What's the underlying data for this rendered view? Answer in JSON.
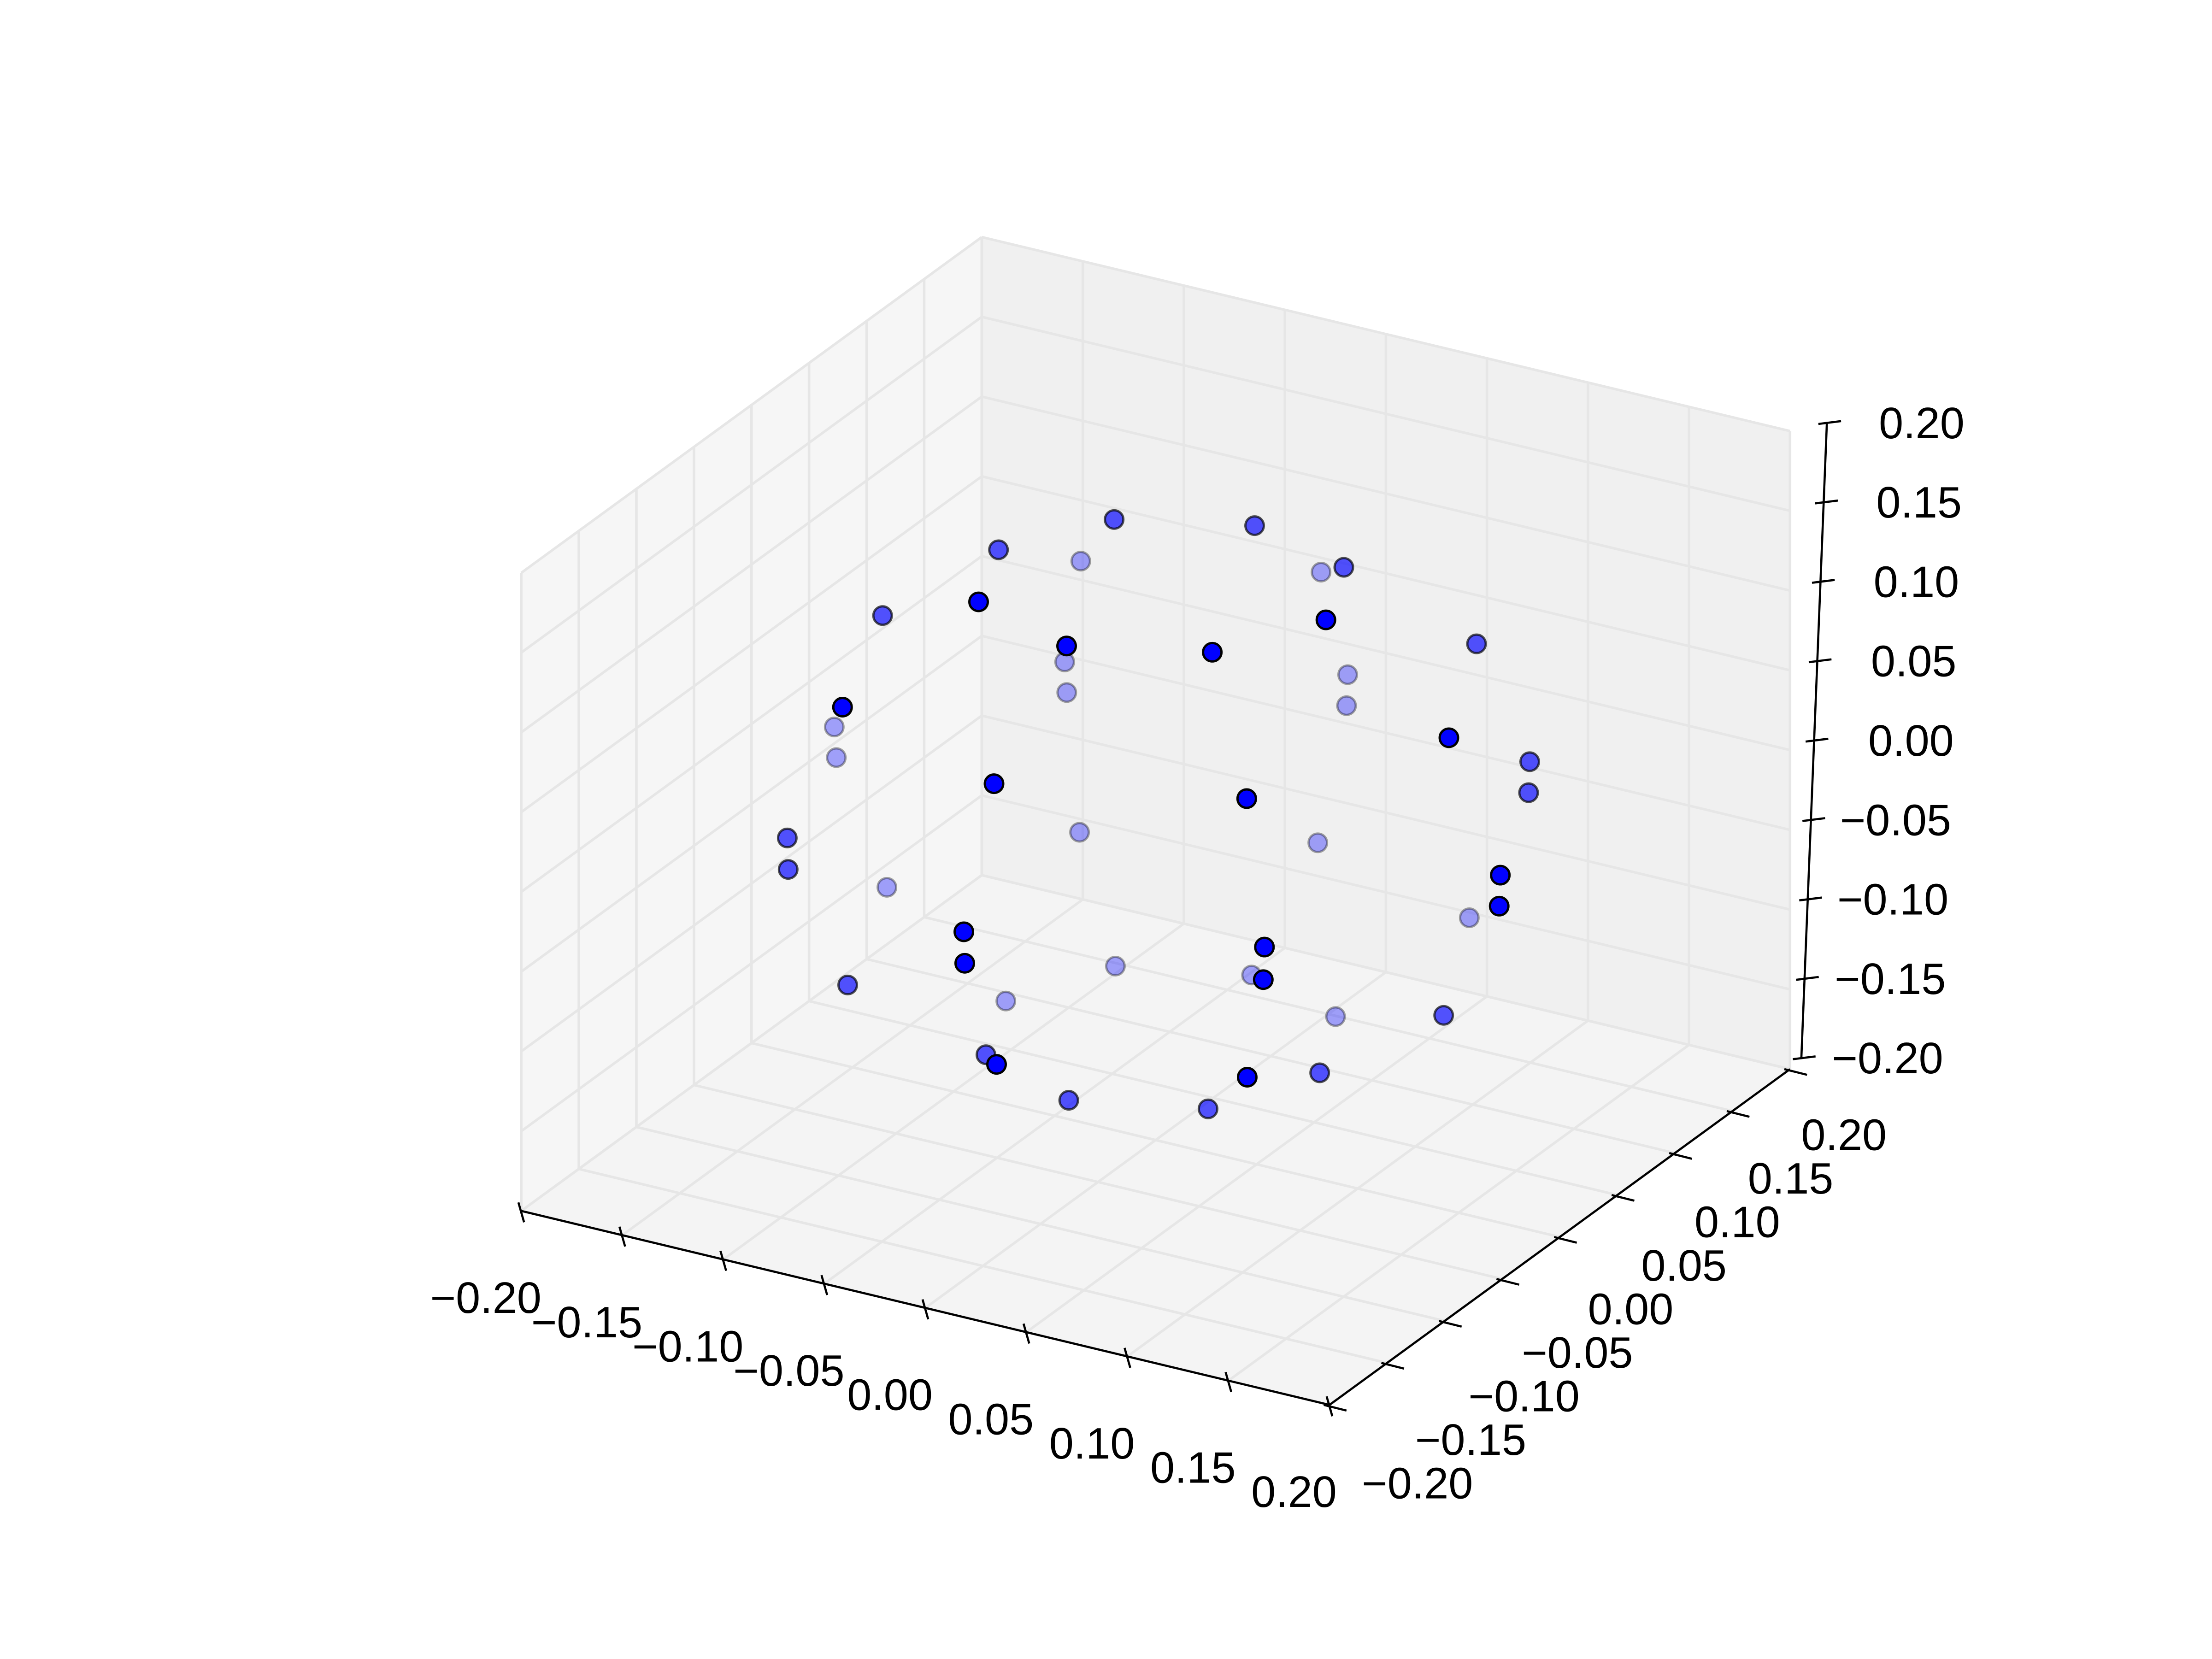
{
  "chart_data": {
    "type": "scatter3d",
    "title": "",
    "xlabel": "",
    "ylabel": "",
    "zlabel": "",
    "xlim": [
      -0.2,
      0.2
    ],
    "ylim": [
      -0.2,
      0.2
    ],
    "zlim": [
      -0.2,
      0.2
    ],
    "grid": true,
    "view": {
      "elev": 30,
      "azim": -60
    },
    "x_ticks": [
      "−0.20",
      "−0.15",
      "−0.10",
      "−0.05",
      "0.00",
      "0.05",
      "0.10",
      "0.15",
      "0.20"
    ],
    "y_ticks": [
      "−0.20",
      "−0.15",
      "−0.10",
      "−0.05",
      "0.00",
      "0.05",
      "0.10",
      "0.15",
      "0.20"
    ],
    "z_ticks": [
      "−0.20",
      "−0.15",
      "−0.10",
      "−0.05",
      "0.00",
      "0.05",
      "0.10",
      "0.15",
      "0.20"
    ],
    "marker_color": "#0000ff",
    "edge_color": "#000000",
    "pane_colors": {
      "left": "#f6f6f6",
      "back": "#f0f0f0",
      "floor": "#f4f4f4"
    },
    "grid_color": "#e6e6e6",
    "points": [
      [
        -0.057,
        0.064,
        0.138
      ],
      [
        -0.004,
        0.093,
        0.135
      ],
      [
        -0.096,
        0.032,
        0.124
      ],
      [
        -0.106,
        0.121,
        0.067
      ],
      [
        -0.015,
        0.17,
        0.062
      ],
      [
        0.035,
        0.102,
        0.116
      ],
      [
        -0.13,
        -0.009,
        0.094
      ],
      [
        -0.054,
        -0.059,
        0.152
      ],
      [
        0.078,
        0.011,
        0.144
      ],
      [
        -0.015,
        -0.051,
        0.132
      ],
      [
        -0.098,
        0.093,
        0.021
      ],
      [
        -0.093,
        0.086,
        0.007
      ],
      [
        0.04,
        -0.021,
        0.129
      ],
      [
        0.095,
        0.112,
        0.081
      ],
      [
        0.009,
        0.151,
        0.015
      ],
      [
        0.013,
        0.143,
        0.001
      ],
      [
        -0.09,
        -0.114,
        0.104
      ],
      [
        -0.175,
        0.028,
        -0.009
      ],
      [
        -0.17,
        0.021,
        -0.023
      ],
      [
        0.14,
        0.009,
        0.09
      ],
      [
        0.131,
        0.095,
        0.027
      ],
      [
        0.135,
        0.087,
        0.013
      ],
      [
        -0.023,
        -0.1,
        0.069
      ],
      [
        0.073,
        -0.049,
        0.062
      ],
      [
        -0.069,
        0.055,
        -0.057
      ],
      [
        0.021,
        0.104,
        -0.062
      ],
      [
        -0.135,
        -0.083,
        -0.008
      ],
      [
        -0.13,
        -0.091,
        -0.022
      ],
      [
        0.178,
        -0.013,
        0.027
      ],
      [
        0.182,
        -0.021,
        0.013
      ],
      [
        -0.133,
        0.0,
        -0.082
      ],
      [
        0.088,
        0.118,
        -0.096
      ],
      [
        -0.014,
        -0.142,
        0.001
      ],
      [
        -0.009,
        -0.15,
        -0.013
      ],
      [
        0.1,
        -0.081,
        -0.006
      ],
      [
        0.104,
        -0.089,
        -0.021
      ],
      [
        -0.037,
        0.03,
        -0.118
      ],
      [
        0.015,
        0.057,
        -0.122
      ],
      [
        -0.092,
        -0.106,
        -0.075
      ],
      [
        -0.073,
        -0.002,
        -0.134
      ],
      [
        0.052,
        0.065,
        -0.141
      ],
      [
        0.134,
        0.015,
        -0.089
      ],
      [
        -0.031,
        -0.093,
        -0.107
      ],
      [
        0.017,
        -0.168,
        -0.059
      ],
      [
        0.096,
        -0.026,
        -0.115
      ],
      [
        0.112,
        -0.117,
        -0.065
      ],
      [
        0.006,
        -0.086,
        -0.128
      ],
      [
        0.059,
        -0.058,
        -0.132
      ]
    ]
  }
}
